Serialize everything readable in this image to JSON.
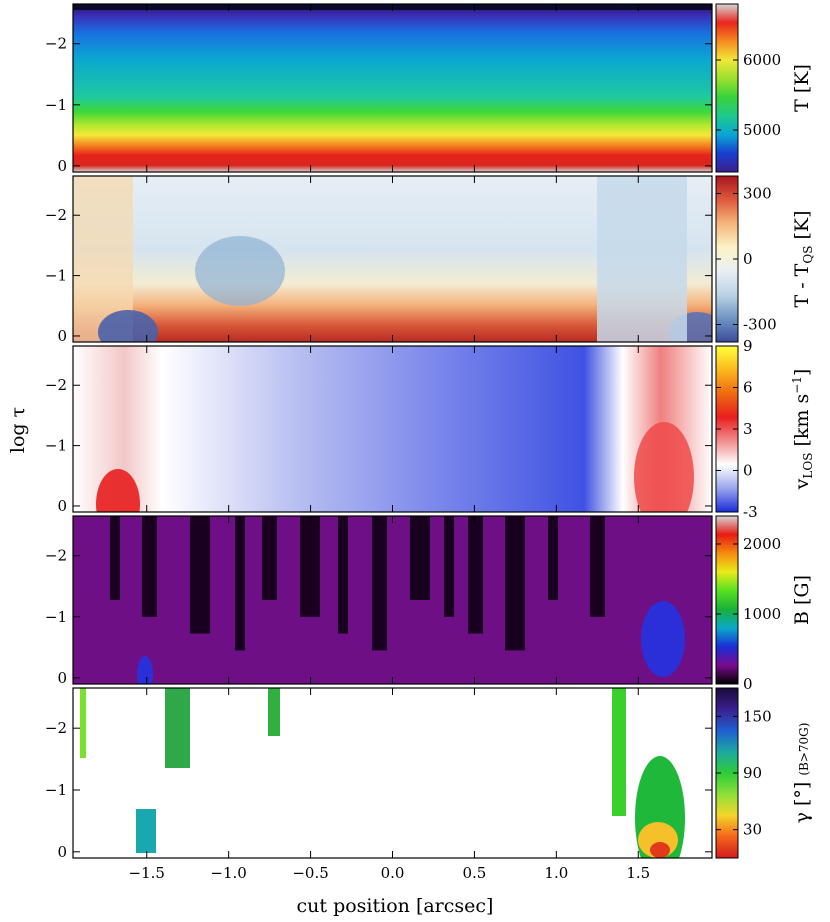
{
  "chart_data": {
    "type": "heatmap",
    "xlabel": "cut position [arcsec]",
    "ylabel": "log τ",
    "xlim": [
      -1.95,
      1.95
    ],
    "ylim": [
      0.1,
      -2.65
    ],
    "x_ticks": [
      "−1.5",
      "−1.0",
      "−0.5",
      "0.0",
      "0.5",
      "1.0",
      "1.5"
    ],
    "x_tick_values": [
      -1.5,
      -1.0,
      -0.5,
      0.0,
      0.5,
      1.0,
      1.5
    ],
    "y_ticks": [
      "−2",
      "−1",
      "0"
    ],
    "y_tick_values": [
      -2,
      -1,
      0
    ],
    "panels": [
      {
        "quantity": "T",
        "colorbar_label": "T [K]",
        "colormap": "spectral",
        "clim": [
          4400,
          6800
        ],
        "colorbar_ticks": [
          "6000",
          "5000"
        ],
        "colorbar_tick_values": [
          6000,
          5000
        ]
      },
      {
        "quantity": "T - T_QS",
        "colorbar_label": "T - T",
        "colorbar_label_sub": "QS",
        "colorbar_label_unit": " [K]",
        "colormap": "diverging",
        "clim": [
          -380,
          380
        ],
        "colorbar_ticks": [
          "300",
          "0",
          "-300"
        ],
        "colorbar_tick_values": [
          300,
          0,
          -300
        ]
      },
      {
        "quantity": "v_LOS",
        "colorbar_label": "v",
        "colorbar_label_sub": "LOS",
        "colorbar_label_unit": " [km s",
        "colorbar_label_sup": "−1",
        "colorbar_label_end": "]",
        "colormap": "blue-white-red-yellow",
        "clim": [
          -3,
          9
        ],
        "colorbar_ticks": [
          "9",
          "6",
          "3",
          "0",
          "-3"
        ],
        "colorbar_tick_values": [
          9,
          6,
          3,
          0,
          -3
        ]
      },
      {
        "quantity": "B",
        "colorbar_label": "B [G]",
        "colormap": "nipy_spectral",
        "clim": [
          0,
          2400
        ],
        "colorbar_ticks": [
          "2000",
          "1000",
          "0"
        ],
        "colorbar_tick_values": [
          2000,
          1000,
          0
        ]
      },
      {
        "quantity": "gamma",
        "colorbar_label": "γ [°]",
        "colorbar_label_small": "(B>70G)",
        "colormap": "spectral_r",
        "clim": [
          0,
          180
        ],
        "colorbar_ticks": [
          "150",
          "90",
          "30"
        ],
        "colorbar_tick_values": [
          150,
          90,
          30
        ]
      }
    ]
  }
}
